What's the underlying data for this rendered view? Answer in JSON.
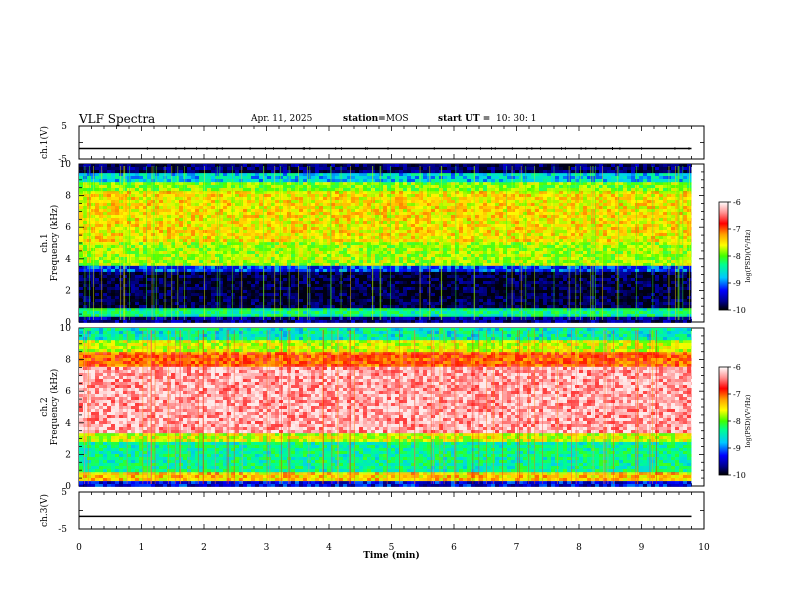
{
  "header": {
    "title": "VLF Spectra",
    "date": "Apr. 11, 2025",
    "station_label": "station=",
    "station": "MOS",
    "start_label": "start  UT  =",
    "start_time": "10: 30: 1"
  },
  "chart_data": [
    {
      "type": "line",
      "panel": "ch1-waveform",
      "ylabel": "ch.1(V)",
      "ylim": [
        -5,
        5
      ],
      "yticks": [
        "5",
        "-5"
      ],
      "xlim": [
        0,
        10
      ],
      "series": [
        {
          "x": [
            0,
            9.8
          ],
          "y": [
            -1.8,
            -1.8
          ]
        }
      ]
    },
    {
      "type": "heatmap",
      "panel": "ch1-spectrogram",
      "ylabel": "ch.1\nFrequency (kHz)",
      "ylim": [
        0,
        10
      ],
      "yticks": [
        "0",
        "2",
        "4",
        "6",
        "8",
        "10"
      ],
      "xlim": [
        0,
        10
      ],
      "data_extent_x": [
        0,
        9.8
      ],
      "bands": [
        {
          "f": [
            0,
            0.4
          ],
          "level": -9.6
        },
        {
          "f": [
            0.4,
            0.8
          ],
          "level": -8.4
        },
        {
          "f": [
            0.8,
            3.2
          ],
          "level": -9.8
        },
        {
          "f": [
            3.2,
            3.6
          ],
          "level": -9.1
        },
        {
          "f": [
            3.6,
            5.0
          ],
          "level": -7.8
        },
        {
          "f": [
            5.0,
            8.2
          ],
          "level": -7.5
        },
        {
          "f": [
            8.2,
            8.8
          ],
          "level": -7.9
        },
        {
          "f": [
            8.8,
            9.4
          ],
          "level": -8.7
        },
        {
          "f": [
            9.4,
            10.0
          ],
          "level": -9.7
        }
      ],
      "colorbar": {
        "range": [
          -10,
          -6
        ],
        "ticks": [
          "-6",
          "-7",
          "-8",
          "-9",
          "-10"
        ],
        "label": "log(PSD)(V²/Hz)"
      }
    },
    {
      "type": "heatmap",
      "panel": "ch2-spectrogram",
      "ylabel": "ch.2\nFrequency (kHz)",
      "ylim": [
        0,
        10
      ],
      "yticks": [
        "0",
        "2",
        "4",
        "6",
        "8",
        "10"
      ],
      "xlim": [
        0,
        10
      ],
      "data_extent_x": [
        0,
        9.8
      ],
      "bands": [
        {
          "f": [
            0,
            0.3
          ],
          "level": -9.3
        },
        {
          "f": [
            0.3,
            0.8
          ],
          "level": -7.4
        },
        {
          "f": [
            0.8,
            2.8
          ],
          "level": -8.4
        },
        {
          "f": [
            2.8,
            3.3
          ],
          "level": -7.7
        },
        {
          "f": [
            3.3,
            7.6
          ],
          "level": -6.3
        },
        {
          "f": [
            7.6,
            8.4
          ],
          "level": -7.0
        },
        {
          "f": [
            8.4,
            9.2
          ],
          "level": -7.7
        },
        {
          "f": [
            9.2,
            10.0
          ],
          "level": -8.5
        }
      ],
      "colorbar": {
        "range": [
          -10,
          -6
        ],
        "ticks": [
          "-6",
          "-7",
          "-8",
          "-9",
          "-10"
        ],
        "label": "log(PSD)(V²/Hz)"
      }
    },
    {
      "type": "line",
      "panel": "ch3-waveform",
      "ylabel": "ch.3(V)",
      "ylim": [
        -5,
        5
      ],
      "yticks": [
        "5",
        "-5"
      ],
      "xlim": [
        0,
        10
      ],
      "xticks": [
        "0",
        "1",
        "2",
        "3",
        "4",
        "5",
        "6",
        "7",
        "8",
        "9",
        "10"
      ],
      "xlabel": "Time  (min)",
      "series": [
        {
          "x": [
            0,
            9.8
          ],
          "y": [
            -1.6,
            -1.6
          ]
        }
      ]
    }
  ],
  "colors": {
    "colormap": [
      "#000000",
      "#00008b",
      "#0000ff",
      "#00c8ff",
      "#00ff90",
      "#40ff00",
      "#ffff00",
      "#ffa000",
      "#ff0000",
      "#ff9090",
      "#ffffff"
    ],
    "axis": "#000000"
  }
}
